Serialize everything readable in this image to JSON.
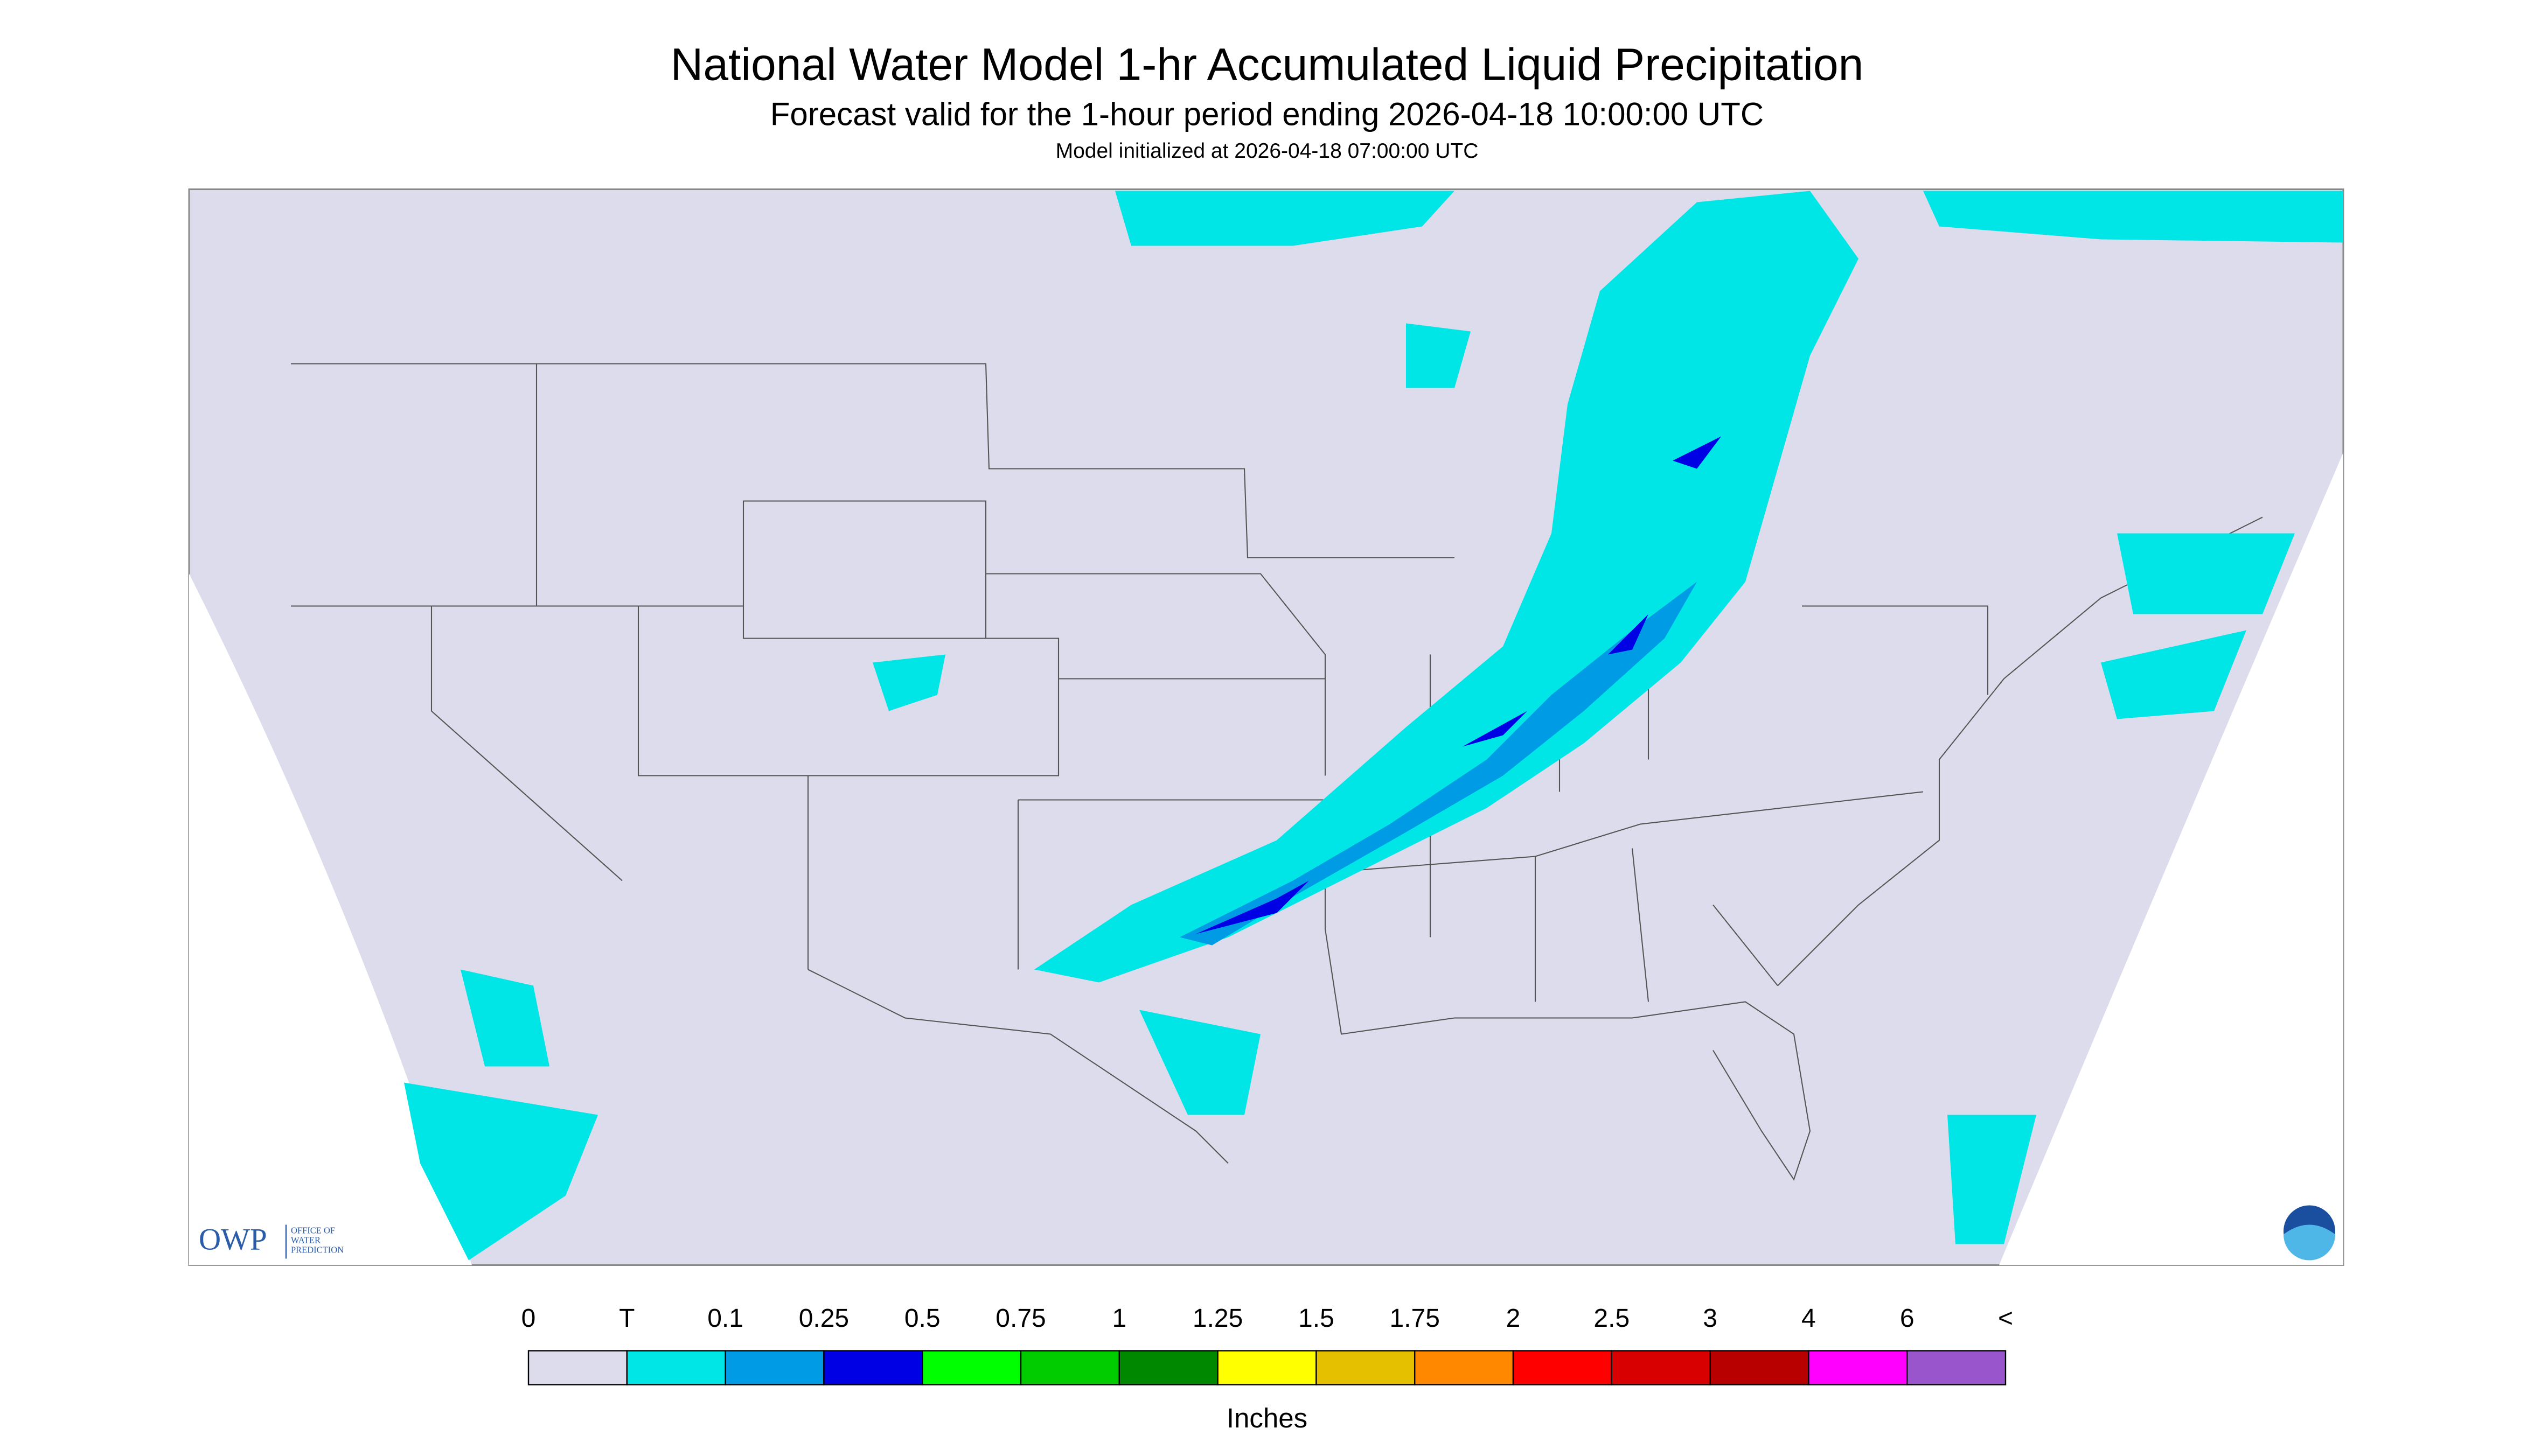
{
  "header": {
    "title": "National Water Model 1-hr Accumulated Liquid Precipitation",
    "subtitle": "Forecast valid for the 1-hour period ending 2026-04-18 10:00:00 UTC",
    "initialized": "Model initialized at 2026-04-18 07:00:00 UTC"
  },
  "logo": {
    "abbr": "OWP",
    "line1": "OFFICE OF",
    "line2": "WATER",
    "line3": "PREDICTION"
  },
  "legend": {
    "labels": [
      "0",
      "T",
      "0.1",
      "0.25",
      "0.5",
      "0.75",
      "1",
      "1.25",
      "1.5",
      "1.75",
      "2",
      "2.5",
      "3",
      "4",
      "6",
      "<"
    ],
    "colors": [
      "#dcdcec",
      "#00e5e5",
      "#009be5",
      "#0000e5",
      "#00ff00",
      "#00cc00",
      "#008800",
      "#ffff00",
      "#e5c000",
      "#ff8800",
      "#ff0000",
      "#d80000",
      "#b80000",
      "#ff00ff",
      "#9955cc"
    ],
    "unit": "Inches"
  }
}
